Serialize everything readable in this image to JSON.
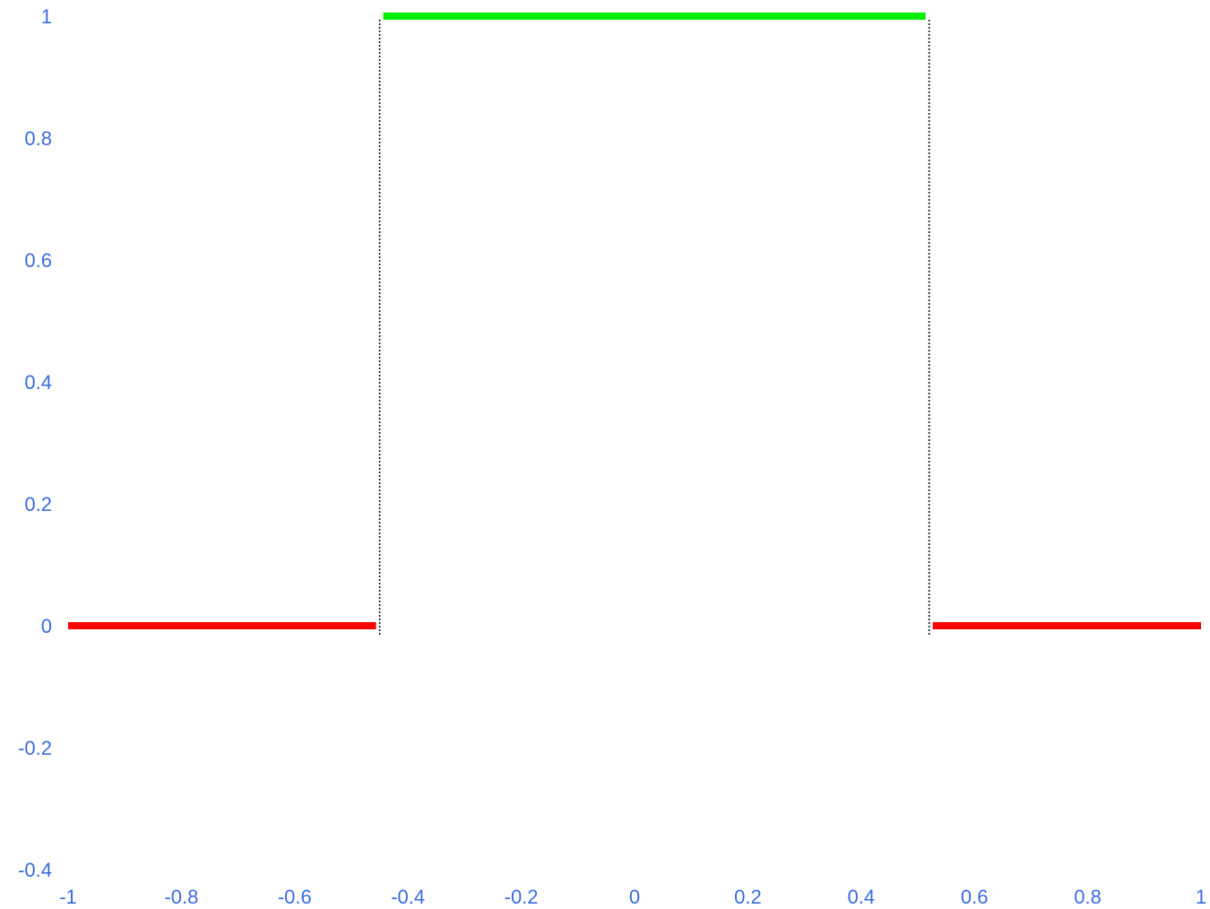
{
  "chart_data": {
    "type": "line",
    "title": "",
    "xlabel": "",
    "ylabel": "",
    "xlim": [
      -1,
      1
    ],
    "ylim": [
      -0.4,
      1
    ],
    "grid": false,
    "x_ticks": [
      "-1",
      "-0.8",
      "-0.6",
      "-0.4",
      "-0.2",
      "0",
      "0.2",
      "0.4",
      "0.6",
      "0.8",
      "1"
    ],
    "y_ticks": [
      "1",
      "0.8",
      "0.6",
      "0.4",
      "0.2",
      "0",
      "-0.2",
      "-0.4"
    ],
    "tick_label_color": "#3a6be0",
    "series": [
      {
        "color": "#ff0000",
        "x": [
          -1,
          -0.45
        ],
        "y": [
          0,
          0
        ]
      },
      {
        "color": "#00ee00",
        "x": [
          -0.45,
          0.52
        ],
        "y": [
          1,
          1
        ]
      },
      {
        "color": "#ff0000",
        "x": [
          0.52,
          1
        ],
        "y": [
          0,
          0
        ]
      }
    ],
    "guides": [
      {
        "x": -0.45,
        "y_from": 0,
        "y_to": 1,
        "style": "dotted",
        "color": "#000000"
      },
      {
        "x": 0.52,
        "y_from": 0,
        "y_to": 1,
        "style": "dotted",
        "color": "#000000"
      }
    ]
  }
}
